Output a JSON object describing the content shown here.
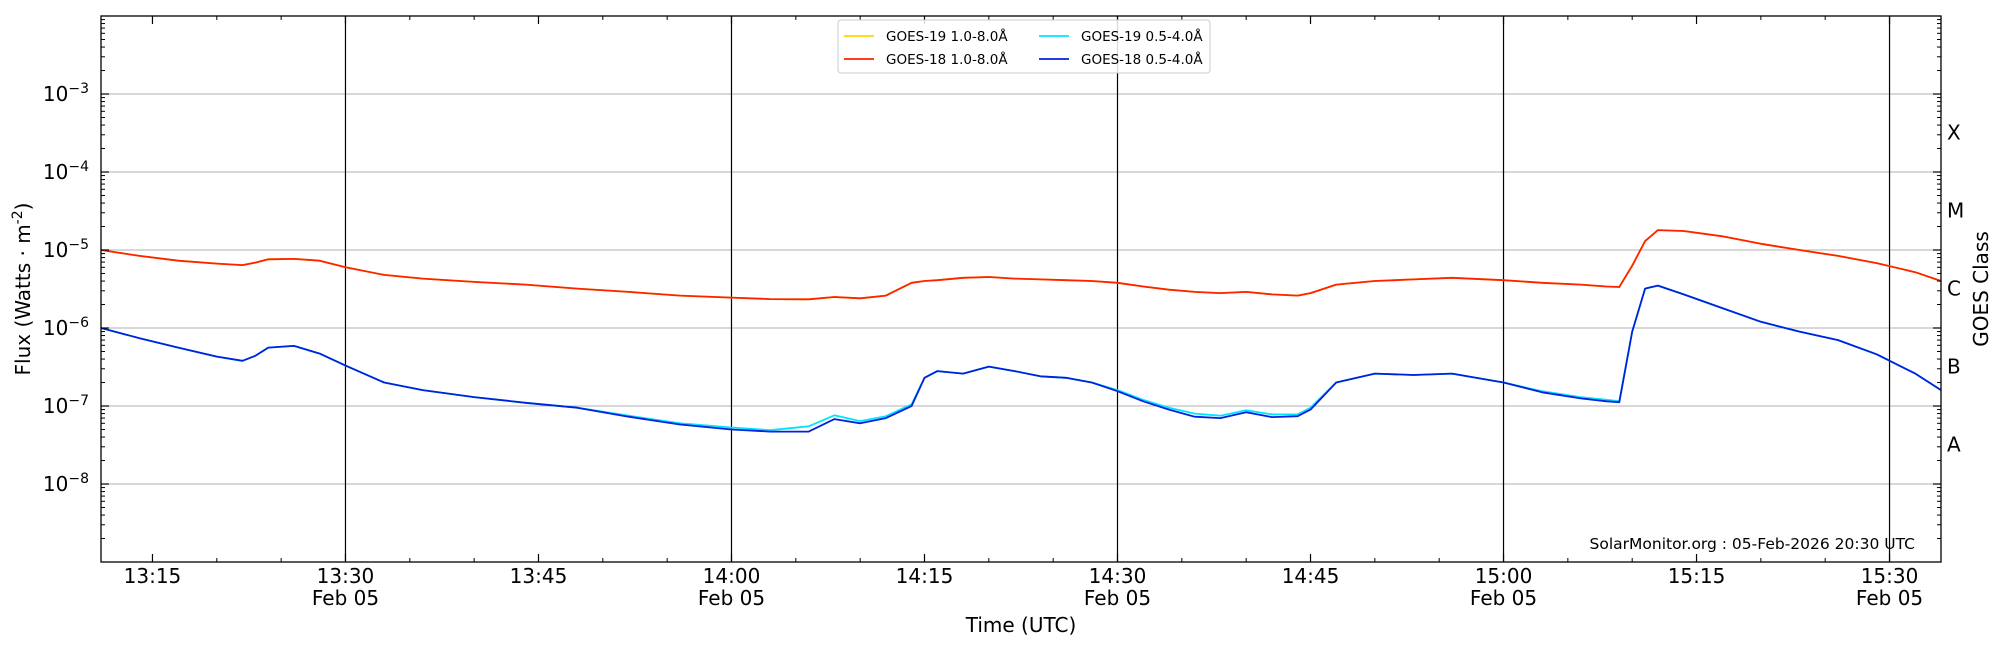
{
  "chart_data": {
    "type": "line",
    "xlabel": "Time (UTC)",
    "ylabel": "Flux (Watts · m",
    "ylabel_exponent": "-2",
    "ylabel_close": ")",
    "y2label": "GOES Class",
    "yscale": "log",
    "ylim": [
      1e-09,
      0.01
    ],
    "xlim": [
      "2026-02-05T13:11",
      "2026-02-05T15:34"
    ],
    "grid": "horizontal",
    "legend_position": "top-center",
    "y_ticks": [
      {
        "value": 1e-08,
        "base": "10",
        "exp": "−8"
      },
      {
        "value": 1e-07,
        "base": "10",
        "exp": "−7"
      },
      {
        "value": 1e-06,
        "base": "10",
        "exp": "−6"
      },
      {
        "value": 1e-05,
        "base": "10",
        "exp": "−5"
      },
      {
        "value": 0.0001,
        "base": "10",
        "exp": "−4"
      },
      {
        "value": 0.001,
        "base": "10",
        "exp": "−3"
      }
    ],
    "x_ticks": [
      {
        "time": "13:15",
        "label": "13:15",
        "date": ""
      },
      {
        "time": "13:30",
        "label": "13:30",
        "date": "Feb 05"
      },
      {
        "time": "13:45",
        "label": "13:45",
        "date": ""
      },
      {
        "time": "14:00",
        "label": "14:00",
        "date": "Feb 05"
      },
      {
        "time": "14:15",
        "label": "14:15",
        "date": ""
      },
      {
        "time": "14:30",
        "label": "14:30",
        "date": "Feb 05"
      },
      {
        "time": "14:45",
        "label": "14:45",
        "date": ""
      },
      {
        "time": "15:00",
        "label": "15:00",
        "date": "Feb 05"
      },
      {
        "time": "15:15",
        "label": "15:15",
        "date": ""
      },
      {
        "time": "15:30",
        "label": "15:30",
        "date": "Feb 05"
      }
    ],
    "class_labels": [
      {
        "label": "A",
        "value": 3.2e-08
      },
      {
        "label": "B",
        "value": 3.2e-07
      },
      {
        "label": "C",
        "value": 3.2e-06
      },
      {
        "label": "M",
        "value": 3.2e-05
      },
      {
        "label": "X",
        "value": 0.00032
      }
    ],
    "x_times": [
      "13:11",
      "13:14",
      "13:17",
      "13:20",
      "13:22",
      "13:23",
      "13:24",
      "13:26",
      "13:28",
      "13:30",
      "13:33",
      "13:36",
      "13:40",
      "13:44",
      "13:48",
      "13:52",
      "13:56",
      "14:00",
      "14:03",
      "14:06",
      "14:08",
      "14:10",
      "14:12",
      "14:14",
      "14:15",
      "14:16",
      "14:18",
      "14:20",
      "14:22",
      "14:24",
      "14:26",
      "14:28",
      "14:30",
      "14:32",
      "14:34",
      "14:36",
      "14:38",
      "14:40",
      "14:42",
      "14:44",
      "14:45",
      "14:47",
      "14:50",
      "14:53",
      "14:56",
      "15:00",
      "15:03",
      "15:06",
      "15:08",
      "15:09",
      "15:10",
      "15:11",
      "15:12",
      "15:14",
      "15:17",
      "15:20",
      "15:23",
      "15:26",
      "15:29",
      "15:32",
      "15:34"
    ],
    "series": [
      {
        "name": "GOES-19 1.0-8.0Å",
        "color": "#ffd700",
        "values": [
          1e-05,
          8.4e-06,
          7.3e-06,
          6.7e-06,
          6.4e-06,
          6.9e-06,
          7.6e-06,
          7.7e-06,
          7.3e-06,
          6e-06,
          4.8e-06,
          4.3e-06,
          3.9e-06,
          3.6e-06,
          3.2e-06,
          2.9e-06,
          2.6e-06,
          2.45e-06,
          2.35e-06,
          2.33e-06,
          2.5e-06,
          2.4e-06,
          2.6e-06,
          3.8e-06,
          4e-06,
          4.1e-06,
          4.4e-06,
          4.5e-06,
          4.3e-06,
          4.2e-06,
          4.1e-06,
          4e-06,
          3.8e-06,
          3.4e-06,
          3.1e-06,
          2.9e-06,
          2.8e-06,
          2.9e-06,
          2.7e-06,
          2.6e-06,
          2.8e-06,
          3.6e-06,
          4e-06,
          4.2e-06,
          4.4e-06,
          4.1e-06,
          3.8e-06,
          3.6e-06,
          3.4e-06,
          3.35e-06,
          6.3e-06,
          1.3e-05,
          1.8e-05,
          1.75e-05,
          1.5e-05,
          1.2e-05,
          1e-05,
          8.4e-06,
          6.8e-06,
          5.2e-06,
          4e-06
        ]
      },
      {
        "name": "GOES-18 1.0-8.0Å",
        "color": "#ff2200",
        "values": [
          1e-05,
          8.4e-06,
          7.3e-06,
          6.7e-06,
          6.4e-06,
          6.9e-06,
          7.6e-06,
          7.7e-06,
          7.3e-06,
          6e-06,
          4.8e-06,
          4.3e-06,
          3.9e-06,
          3.6e-06,
          3.2e-06,
          2.9e-06,
          2.6e-06,
          2.45e-06,
          2.35e-06,
          2.33e-06,
          2.5e-06,
          2.4e-06,
          2.6e-06,
          3.8e-06,
          4e-06,
          4.1e-06,
          4.4e-06,
          4.5e-06,
          4.3e-06,
          4.2e-06,
          4.1e-06,
          4e-06,
          3.8e-06,
          3.4e-06,
          3.1e-06,
          2.9e-06,
          2.8e-06,
          2.9e-06,
          2.7e-06,
          2.6e-06,
          2.8e-06,
          3.6e-06,
          4e-06,
          4.2e-06,
          4.4e-06,
          4.1e-06,
          3.8e-06,
          3.6e-06,
          3.4e-06,
          3.35e-06,
          6.3e-06,
          1.3e-05,
          1.8e-05,
          1.75e-05,
          1.5e-05,
          1.2e-05,
          1e-05,
          8.4e-06,
          6.8e-06,
          5.2e-06,
          4e-06
        ]
      },
      {
        "name": "GOES-19 0.5-4.0Å",
        "color": "#00e5ff",
        "values": [
          1e-06,
          7.4e-07,
          5.6e-07,
          4.3e-07,
          3.8e-07,
          4.4e-07,
          5.6e-07,
          5.9e-07,
          4.7e-07,
          3.3e-07,
          2e-07,
          1.6e-07,
          1.3e-07,
          1.1e-07,
          9.5e-08,
          7.5e-08,
          6e-08,
          5.3e-08,
          4.9e-08,
          5.5e-08,
          7.6e-08,
          6.4e-08,
          7.4e-08,
          1.05e-07,
          2.3e-07,
          2.8e-07,
          2.6e-07,
          3.2e-07,
          2.8e-07,
          2.4e-07,
          2.3e-07,
          2e-07,
          1.6e-07,
          1.2e-07,
          9.5e-08,
          8e-08,
          7.5e-08,
          8.8e-08,
          7.8e-08,
          7.8e-08,
          9.5e-08,
          2e-07,
          2.6e-07,
          2.5e-07,
          2.6e-07,
          2e-07,
          1.55e-07,
          1.3e-07,
          1.2e-07,
          1.15e-07,
          9e-07,
          3.2e-06,
          3.5e-06,
          2.7e-06,
          1.8e-06,
          1.2e-06,
          9e-07,
          7e-07,
          4.6e-07,
          2.6e-07,
          1.6e-07
        ]
      },
      {
        "name": "GOES-18 0.5-4.0Å",
        "color": "#0022dd",
        "values": [
          1e-06,
          7.4e-07,
          5.6e-07,
          4.3e-07,
          3.8e-07,
          4.4e-07,
          5.6e-07,
          5.9e-07,
          4.7e-07,
          3.3e-07,
          2e-07,
          1.6e-07,
          1.3e-07,
          1.1e-07,
          9.5e-08,
          7.3e-08,
          5.8e-08,
          5e-08,
          4.7e-08,
          4.7e-08,
          6.8e-08,
          6e-08,
          7e-08,
          1e-07,
          2.3e-07,
          2.8e-07,
          2.6e-07,
          3.2e-07,
          2.8e-07,
          2.4e-07,
          2.3e-07,
          2e-07,
          1.55e-07,
          1.15e-07,
          9e-08,
          7.3e-08,
          7e-08,
          8.3e-08,
          7.2e-08,
          7.4e-08,
          9e-08,
          2e-07,
          2.6e-07,
          2.5e-07,
          2.6e-07,
          2e-07,
          1.5e-07,
          1.25e-07,
          1.15e-07,
          1.12e-07,
          9e-07,
          3.2e-06,
          3.5e-06,
          2.7e-06,
          1.8e-06,
          1.2e-06,
          9e-07,
          7e-07,
          4.6e-07,
          2.6e-07,
          1.6e-07
        ]
      }
    ],
    "annotation": "SolarMonitor.org : 05-Feb-2026 20:30 UTC"
  }
}
